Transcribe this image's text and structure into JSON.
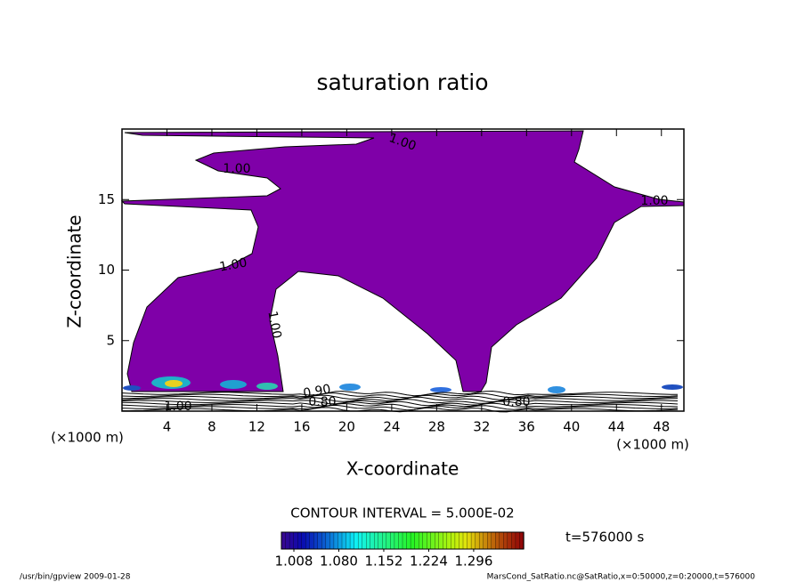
{
  "chart_data": {
    "type": "contour",
    "title": "saturation ratio",
    "x_label": "X-coordinate",
    "y_label": "Z-coordinate",
    "x_unit": "(×1000 m)",
    "y_unit": "(×1000 m)",
    "xlim": [
      0,
      50
    ],
    "ylim": [
      0,
      20
    ],
    "xticks": [
      4,
      8,
      12,
      16,
      20,
      24,
      28,
      32,
      36,
      40,
      44,
      48
    ],
    "yticks": [
      5,
      10,
      15
    ],
    "fill_color": "#7f00a8",
    "contour_labels": [
      "1.00",
      "1.00",
      "1.00",
      "1.00",
      "1.00",
      "1.00",
      "0.90",
      "0.80",
      "0.80"
    ],
    "contour_interval": "CONTOUR INTERVAL = 5.000E-02",
    "colorbar_lim": [
      0.988,
      1.376
    ],
    "colorbar_ticks": [
      1.008,
      {
        "value": 1.08,
        "label": "1.080"
      },
      1.152,
      1.224,
      1.296
    ],
    "time_label": "t=576000 s",
    "footer_left": "/usr/bin/gpview  2009-01-28",
    "footer_right": "MarsCond_SatRatio.nc@SatRatio,x=0:50000,z=0:20000,t=576000"
  }
}
